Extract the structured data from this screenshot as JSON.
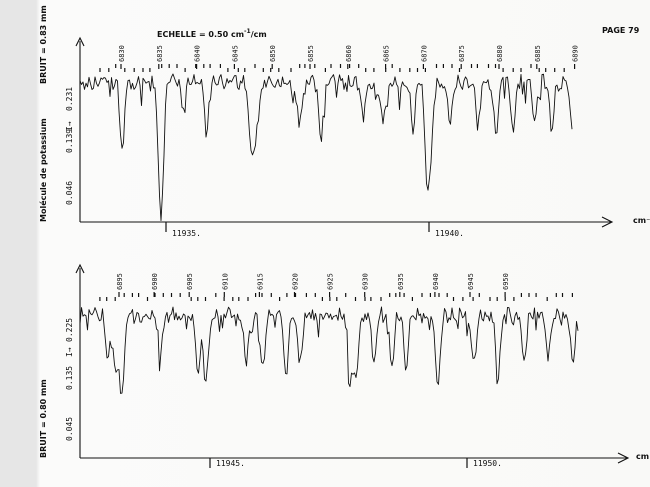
{
  "header": {
    "scale_label": "ECHELLE = 0.50 cm",
    "scale_exp": "-1",
    "scale_unit": "/cm",
    "page": "PAGE 79"
  },
  "left_labels": {
    "molecule": "Molécule de potassium",
    "top_bruit": "BRUIT = 0.83 mm",
    "bottom_bruit": "BRUIT = 0.80 mm"
  },
  "chart_data": [
    {
      "type": "line",
      "title": "",
      "xlabel": "cm⁻¹",
      "ylabel": "I→",
      "y_ticks": [
        "0.046",
        "0.139",
        "0.231"
      ],
      "x_ticks": [
        "11935.",
        "11940."
      ],
      "line_numbers": [
        "6830",
        "6835",
        "6840",
        "6845",
        "6850",
        "6855",
        "6860",
        "6865",
        "6870",
        "6875",
        "6880",
        "6885",
        "6890"
      ],
      "grid": false
    },
    {
      "type": "line",
      "title": "",
      "xlabel": "cm",
      "ylabel": "I→",
      "y_ticks": [
        "0.045",
        "0.135",
        "0.225"
      ],
      "x_ticks": [
        "11945.",
        "11950."
      ],
      "line_numbers": [
        "6895",
        "6900",
        "6905",
        "6910",
        "6915",
        "6920",
        "6925",
        "6930",
        "6935",
        "6940",
        "6945",
        "6950"
      ],
      "grid": false
    }
  ]
}
